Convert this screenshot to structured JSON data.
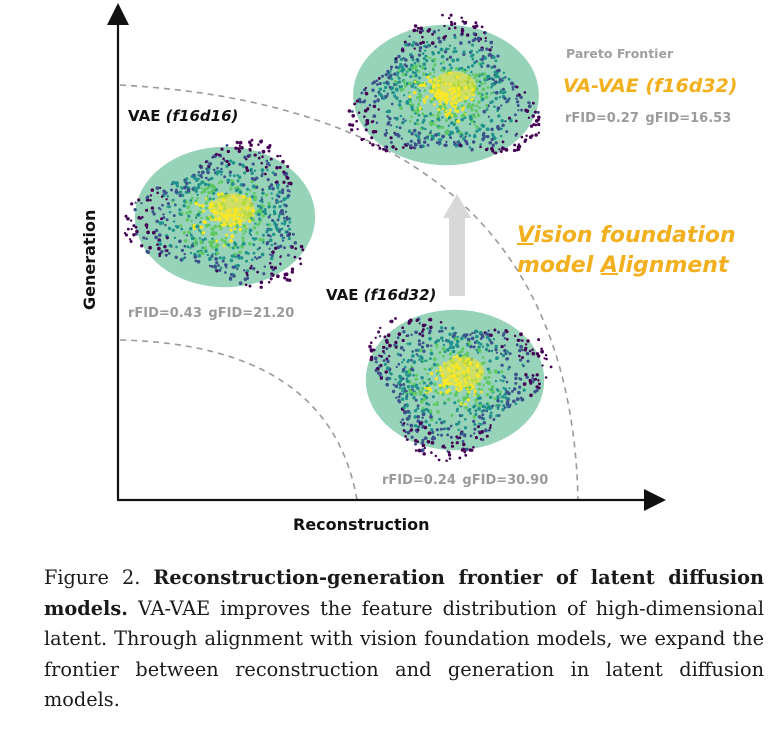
{
  "figure": {
    "axis_x_label": "Reconstruction",
    "axis_y_label": "Generation",
    "pareto_label": "Pareto Frontier",
    "clusters": [
      {
        "name_prefix": "VAE ",
        "name_italic": "(f16d16)",
        "rfid": "rFID=0.43",
        "gfid": "gFID=21.20"
      },
      {
        "name_prefix": "VAE ",
        "name_italic": "(f16d32)",
        "rfid": "rFID=0.24",
        "gfid": "gFID=30.90"
      },
      {
        "name": "VA-VAE (f16d32)",
        "rfid": "rFID=0.27",
        "gfid": "gFID=16.53"
      }
    ],
    "alignment_line1_u": "V",
    "alignment_line1_rest": "ision foundation",
    "alignment_line2_a": "model ",
    "alignment_line2_u": "A",
    "alignment_line2_rest": "lignment",
    "colors": {
      "accent": "#f2b01e",
      "muted": "#9a9a9a",
      "dash": "#9a9a9a",
      "arrow": "#d8d8d8"
    },
    "colormap": [
      "#440154",
      "#3b528b",
      "#21918c",
      "#5ec962",
      "#fde725"
    ]
  },
  "caption": {
    "label": "Figure 2.",
    "bold": "Reconstruction-generation frontier of latent diffusion models.",
    "text": "VA-VAE improves the feature distribution of high-dimensional latent. Through alignment with vision foundation models, we expand the frontier between reconstruction and generation in latent diffusion models."
  }
}
